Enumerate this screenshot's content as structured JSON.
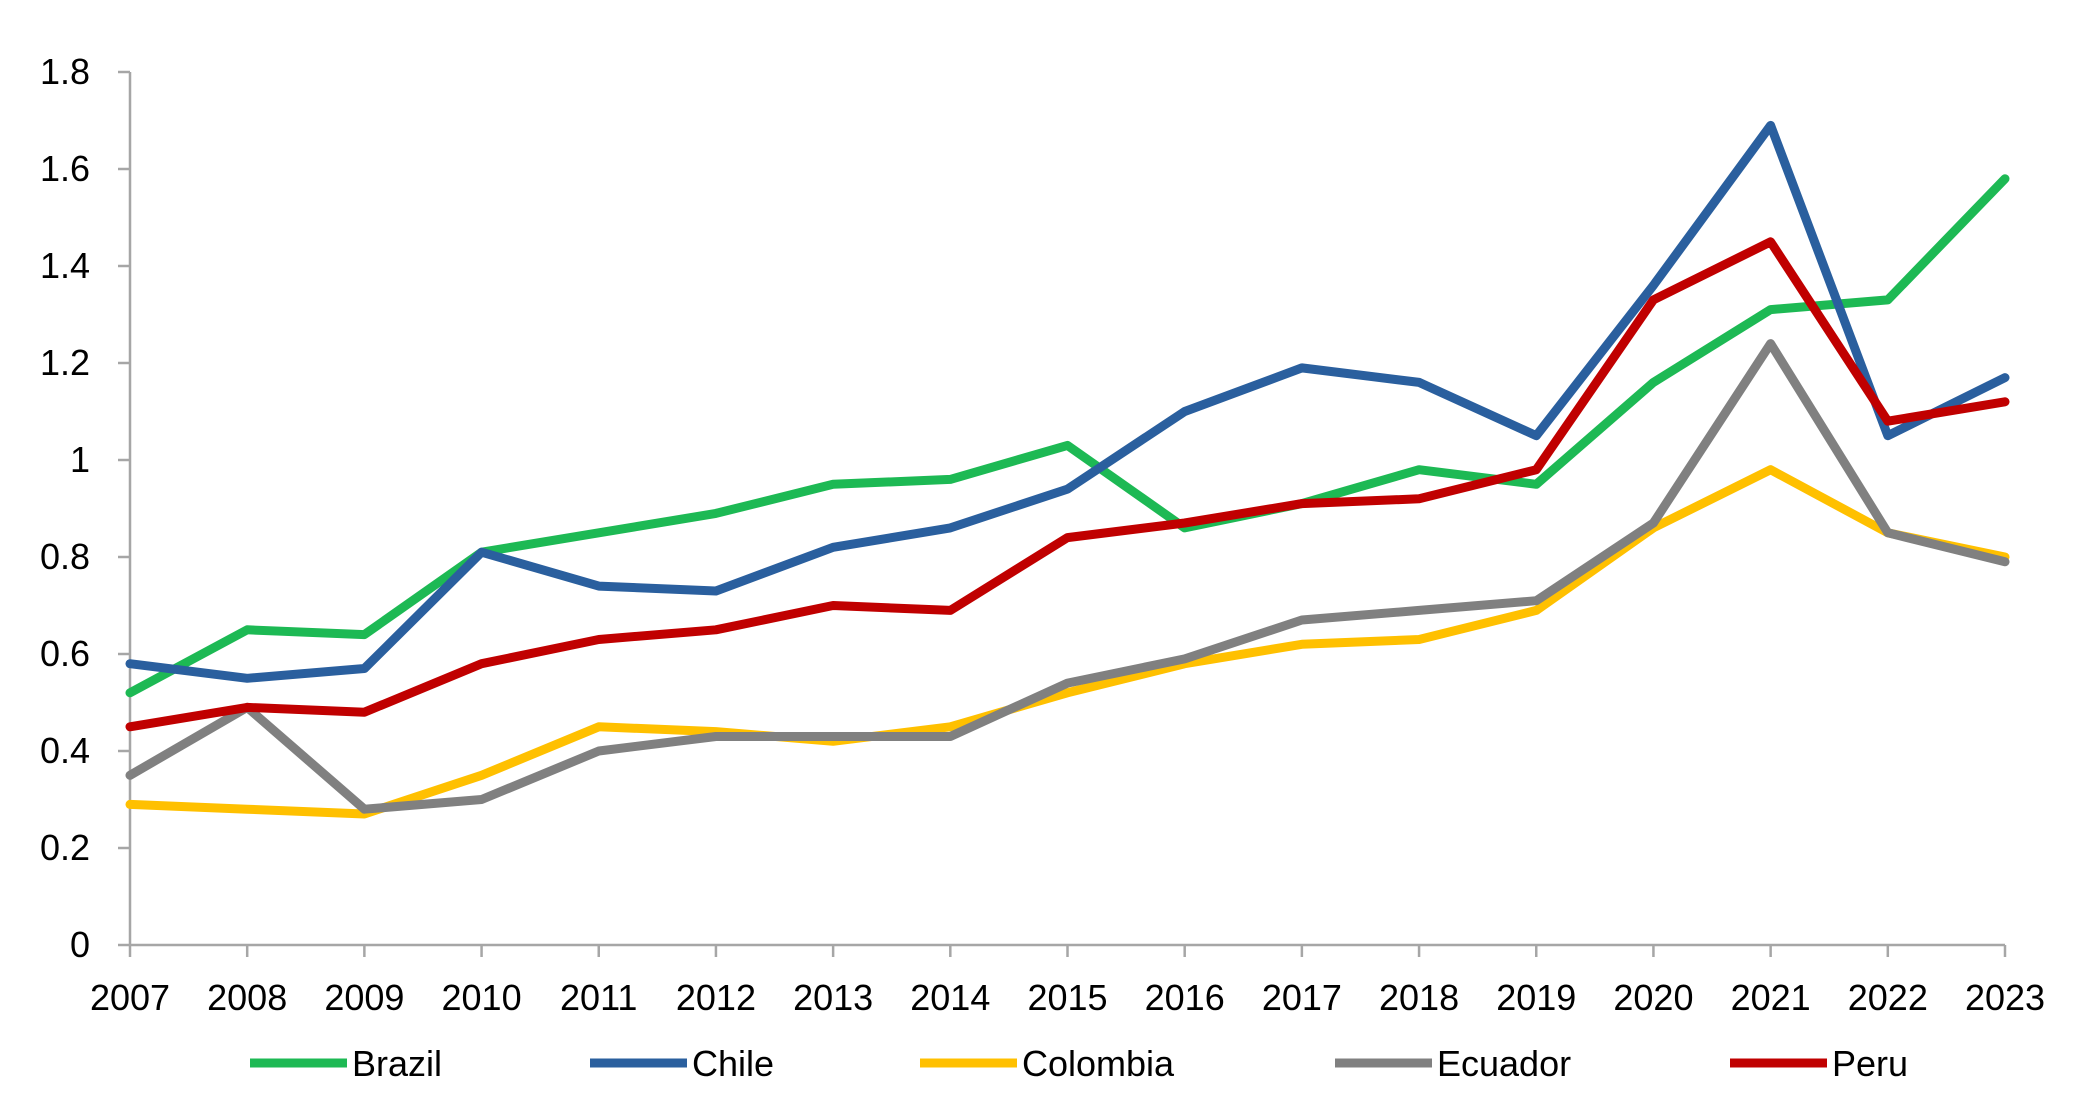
{
  "chart_data": {
    "type": "line",
    "title": "",
    "xlabel": "",
    "ylabel": "",
    "ylim": [
      0,
      1.8
    ],
    "y_ticks": [
      "0",
      "0.2",
      "0.4",
      "0.6",
      "0.8",
      "1",
      "1.2",
      "1.4",
      "1.6",
      "1.8"
    ],
    "categories": [
      "2007",
      "2008",
      "2009",
      "2010",
      "2011",
      "2012",
      "2013",
      "2014",
      "2015",
      "2016",
      "2017",
      "2018",
      "2019",
      "2020",
      "2021",
      "2022",
      "2023"
    ],
    "grid": false,
    "legend_position": "bottom",
    "series": [
      {
        "name": "Brazil",
        "color": "#1db954",
        "values": [
          0.52,
          0.65,
          0.64,
          0.81,
          0.85,
          0.89,
          0.95,
          0.96,
          1.03,
          0.86,
          0.91,
          0.98,
          0.95,
          1.16,
          1.31,
          1.33,
          1.58
        ]
      },
      {
        "name": "Chile",
        "color": "#2a5f9e",
        "values": [
          0.58,
          0.55,
          0.57,
          0.81,
          0.74,
          0.73,
          0.82,
          0.86,
          0.94,
          1.1,
          1.19,
          1.16,
          1.05,
          1.36,
          1.69,
          1.05,
          1.17
        ]
      },
      {
        "name": "Colombia",
        "color": "#ffc000",
        "values": [
          0.29,
          0.28,
          0.27,
          0.35,
          0.45,
          0.44,
          0.42,
          0.45,
          0.52,
          0.58,
          0.62,
          0.63,
          0.69,
          0.86,
          0.98,
          0.85,
          0.8
        ]
      },
      {
        "name": "Ecuador",
        "color": "#808080",
        "values": [
          0.35,
          0.49,
          0.28,
          0.3,
          0.4,
          0.43,
          0.43,
          0.43,
          0.54,
          0.59,
          0.67,
          0.69,
          0.71,
          0.87,
          1.24,
          0.85,
          0.79
        ]
      },
      {
        "name": "Peru",
        "color": "#c00000",
        "values": [
          0.45,
          0.49,
          0.48,
          0.58,
          0.63,
          0.65,
          0.7,
          0.69,
          0.84,
          0.87,
          0.91,
          0.92,
          0.98,
          1.33,
          1.45,
          1.08,
          1.12
        ]
      }
    ]
  }
}
